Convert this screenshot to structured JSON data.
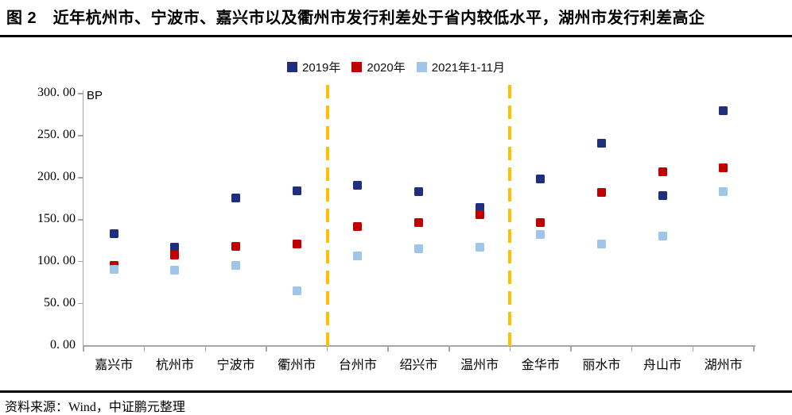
{
  "figure": {
    "title": "图 2　近年杭州市、宁波市、嘉兴市以及衢州市发行利差处于省内较低水平，湖州市发行利差高企",
    "source": "资料来源：Wind，中证鹏元整理"
  },
  "colors": {
    "series_2019": "#1F2E7F",
    "series_2020": "#C00000",
    "series_2021": "#9FC5E8",
    "axis": "#A6A6A6",
    "separator": "#FFC000",
    "rule": "#000000"
  },
  "chart_data": {
    "type": "scatter",
    "marker": "square",
    "unit_label": "BP",
    "categories": [
      "嘉兴市",
      "杭州市",
      "宁波市",
      "衢州市",
      "台州市",
      "绍兴市",
      "温州市",
      "金华市",
      "丽水市",
      "舟山市",
      "湖州市"
    ],
    "series": [
      {
        "name": "2019年",
        "color": "#1F2E7F",
        "values": [
          133,
          117,
          176,
          184,
          191,
          183,
          164,
          198,
          241,
          179,
          280
        ]
      },
      {
        "name": "2020年",
        "color": "#C00000",
        "values": [
          95,
          108,
          118,
          121,
          142,
          146,
          156,
          146,
          182,
          207,
          212
        ]
      },
      {
        "name": "2021年1-11月",
        "color": "#9FC5E8",
        "values": [
          91,
          90,
          95,
          65,
          107,
          115,
          117,
          132,
          121,
          130,
          183
        ]
      }
    ],
    "ylim": [
      0,
      300
    ],
    "ytick_step": 50,
    "ytick_labels": [
      "0. 00",
      "50. 00",
      "100. 00",
      "150. 00",
      "200. 00",
      "250. 00",
      "300. 00"
    ],
    "grid": false,
    "legend_position": "top-center",
    "separators_after": [
      "衢州市",
      "温州市"
    ]
  }
}
